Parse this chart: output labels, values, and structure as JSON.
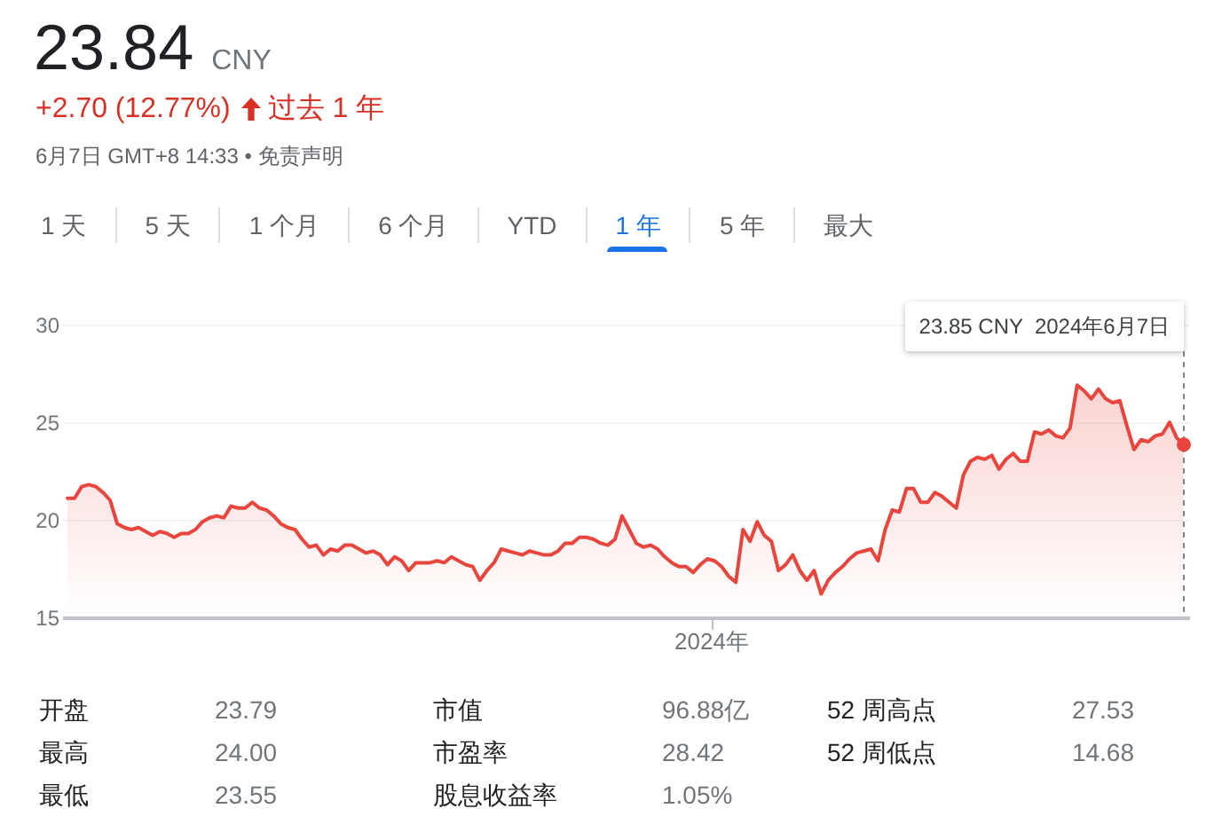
{
  "chart_data": {
    "type": "area",
    "title": "23.84",
    "subtitle": "+2.70 (12.77%)",
    "annotations": [
      "CNY",
      "过去 1 年",
      "6月7日 GMT+8 14:33 • 免责声明",
      "1 天",
      "5 天",
      "1 个月",
      "6 个月",
      "YTD",
      "1 年",
      "5 年",
      "最大",
      "开盘",
      "23.79",
      "市值",
      "96.88亿",
      "52 周高点",
      "27.53",
      "最高",
      "24.00",
      "市盈率",
      "28.42",
      "52 周低点",
      "14.68",
      "最低",
      "23.55",
      "股息收益率",
      "1.05%",
      "2024年",
      "23.85 CNY  2024年6月7日"
    ],
    "categories": [
      null,
      null,
      null,
      null,
      null,
      null,
      null,
      null,
      null,
      null,
      null,
      null,
      null,
      null,
      null,
      null,
      null,
      null,
      null,
      null,
      null,
      null,
      null,
      null,
      null,
      null,
      null,
      null,
      null,
      null,
      null,
      null,
      null,
      null,
      null,
      null,
      null,
      null,
      null,
      null,
      null,
      null,
      null,
      null,
      null,
      null,
      null,
      null,
      null,
      null,
      null,
      null,
      null,
      null,
      null,
      null,
      null,
      null,
      null,
      null,
      null,
      null,
      null,
      null,
      null,
      null,
      null,
      null,
      null,
      null,
      null,
      null,
      null,
      null,
      null,
      null,
      null,
      null,
      null,
      null,
      null,
      null,
      null,
      null,
      null,
      null,
      null,
      null,
      null,
      null,
      null,
      null,
      null,
      null,
      null,
      null,
      null,
      null,
      null,
      null,
      null,
      null,
      null,
      null,
      null,
      null,
      null,
      null,
      null,
      null,
      null,
      null,
      null,
      null,
      null,
      null,
      null,
      null,
      null,
      null,
      null,
      null,
      null,
      null,
      null,
      null,
      null,
      null,
      null,
      null,
      null,
      null,
      null,
      null,
      null,
      null,
      null,
      null,
      null,
      null,
      null,
      null,
      null,
      null,
      null,
      null,
      null,
      null,
      null,
      null,
      null,
      null,
      null,
      null,
      null,
      null,
      null,
      null
    ],
    "series": [
      {
        "color": "#e8453c",
        "values": [
          21.1,
          21.1,
          21.7,
          21.8,
          21.7,
          21.4,
          21.0,
          19.8,
          19.6,
          19.5,
          19.6,
          19.4,
          19.2,
          19.4,
          19.3,
          19.1,
          19.3,
          19.3,
          19.5,
          19.9,
          20.1,
          20.2,
          20.1,
          20.7,
          20.6,
          20.6,
          20.9,
          20.6,
          20.5,
          20.2,
          19.8,
          19.6,
          19.5,
          19.0,
          18.6,
          18.7,
          18.2,
          18.5,
          18.4,
          18.7,
          18.7,
          18.5,
          18.3,
          18.4,
          18.2,
          17.7,
          18.1,
          17.9,
          17.4,
          17.8,
          17.8,
          17.8,
          17.9,
          17.8,
          18.1,
          17.9,
          17.7,
          17.6,
          16.9,
          17.4,
          17.8,
          18.5,
          18.4,
          18.3,
          18.2,
          18.4,
          18.3,
          18.2,
          18.2,
          18.4,
          18.8,
          18.8,
          19.1,
          19.1,
          19.0,
          18.8,
          18.7,
          19.0,
          20.2,
          19.5,
          18.8,
          18.6,
          18.7,
          18.5,
          18.1,
          17.8,
          17.6,
          17.6,
          17.3,
          17.7,
          18.0,
          17.9,
          17.6,
          17.1,
          16.8,
          19.5,
          18.9,
          19.9,
          19.2,
          18.9,
          17.4,
          17.7,
          18.2,
          17.4,
          16.9,
          17.4,
          16.2,
          16.9,
          17.3,
          17.6,
          18.0,
          18.3,
          18.4,
          18.5,
          17.9,
          19.5,
          20.5,
          20.4,
          21.6,
          21.6,
          20.9,
          20.9,
          21.4,
          21.2,
          20.9,
          20.6,
          22.3,
          23.0,
          23.2,
          23.1,
          23.3,
          22.6,
          23.1,
          23.4,
          23.0,
          23.0,
          24.5,
          24.4,
          24.6,
          24.3,
          24.2,
          24.7,
          26.9,
          26.6,
          26.2,
          26.7,
          26.2,
          26.0,
          26.1,
          24.8,
          23.6,
          24.1,
          24.0,
          24.3,
          24.4,
          25.0,
          24.2,
          23.85
        ]
      },
      {
        "type": "scatter",
        "color": "#e8453c",
        "marker": "circle",
        "values": [
          null,
          null,
          null,
          null,
          null,
          null,
          null,
          null,
          null,
          null,
          null,
          null,
          null,
          null,
          null,
          null,
          null,
          null,
          null,
          null,
          null,
          null,
          null,
          null,
          null,
          null,
          null,
          null,
          null,
          null,
          null,
          null,
          null,
          null,
          null,
          null,
          null,
          null,
          null,
          null,
          null,
          null,
          null,
          null,
          null,
          null,
          null,
          null,
          null,
          null,
          null,
          null,
          null,
          null,
          null,
          null,
          null,
          null,
          null,
          null,
          null,
          null,
          null,
          null,
          null,
          null,
          null,
          null,
          null,
          null,
          null,
          null,
          null,
          null,
          null,
          null,
          null,
          null,
          null,
          null,
          null,
          null,
          null,
          null,
          null,
          null,
          null,
          null,
          null,
          null,
          null,
          null,
          null,
          null,
          null,
          null,
          null,
          null,
          null,
          null,
          null,
          null,
          null,
          null,
          null,
          null,
          null,
          null,
          null,
          null,
          null,
          null,
          null,
          null,
          null,
          null,
          null,
          null,
          null,
          null,
          null,
          null,
          null,
          null,
          null,
          null,
          null,
          null,
          null,
          null,
          null,
          null,
          null,
          null,
          null,
          null,
          null,
          null,
          null,
          null,
          null,
          null,
          null,
          null,
          null,
          null,
          null,
          null,
          null,
          null,
          null,
          null,
          null,
          null,
          null,
          null,
          null,
          23.85
        ]
      }
    ],
    "ylim": [
      15,
      30
    ],
    "yticks": [
      15,
      20,
      25,
      30
    ],
    "grid": "y"
  }
}
